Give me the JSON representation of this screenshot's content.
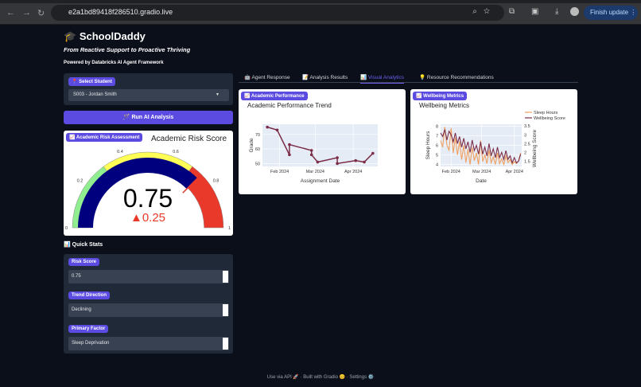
{
  "browser": {
    "url": "e2a1bd89418f286510.gradio.live",
    "finish_update": "Finish update",
    "back": "←",
    "forward": "→",
    "reload": "↻"
  },
  "header": {
    "icon": "🎓",
    "title": "SchoolDaddy",
    "subtitle": "From Reactive Support to Proactive Thriving",
    "powered": "Powered by Databricks AI Agent Framework"
  },
  "student": {
    "label": "📍 Select Student",
    "value": "S003 - Jordan Smith"
  },
  "run_button": "🪄 Run AI Analysis",
  "risk": {
    "label": "📈 Academic Risk Assessment",
    "title": "Academic Risk Score",
    "value": 0.75,
    "value_text": "0.75",
    "delta_text": "▲0.25",
    "reference": 0.5,
    "ticks": [
      "0",
      "0.2",
      "0.4",
      "0.6",
      "0.8",
      "1"
    ],
    "steps": [
      {
        "range": [
          0,
          0.3
        ],
        "color": "#90ee90"
      },
      {
        "range": [
          0.3,
          0.7
        ],
        "color": "#ffff55"
      },
      {
        "range": [
          0.7,
          1
        ],
        "color": "#e8392a"
      }
    ],
    "bar_color": "#00007f",
    "threshold": 0.75,
    "delta_color": "#e8392a"
  },
  "quick_stats": {
    "title": "📊 Quick Stats",
    "items": [
      {
        "label": "Risk Score",
        "value": "0.75"
      },
      {
        "label": "Trend Direction",
        "value": "Declining"
      },
      {
        "label": "Primary Factor",
        "value": "Sleep Deprivation"
      }
    ]
  },
  "tabs": [
    {
      "label": "🤖 Agent Response"
    },
    {
      "label": "📝 Analysis Results"
    },
    {
      "label": "📊 Visual Analytics",
      "active": true
    },
    {
      "label": "💡 Resource Recommendations"
    }
  ],
  "chart_data": [
    {
      "type": "line",
      "label": "📈 Academic Performance",
      "title": "Academic Performance Trend",
      "xlabel": "Assignment Date",
      "ylabel": "Grade",
      "xticks": [
        "Feb 2024",
        "Mar 2024",
        "Apr 2024"
      ],
      "yticks": [
        50,
        60,
        70
      ],
      "ylim": [
        48,
        77
      ],
      "xlim": [
        "2024-01-18",
        "2024-04-21"
      ],
      "color": "#7b2d47",
      "grid": true,
      "x": [
        "2024-01-22",
        "2024-01-30",
        "2024-02-09",
        "2024-02-09",
        "2024-02-27",
        "2024-02-27",
        "2024-03-03",
        "2024-03-19",
        "2024-03-19",
        "2024-04-03",
        "2024-04-10",
        "2024-04-17"
      ],
      "y": [
        75,
        73,
        56,
        63,
        59,
        56,
        51,
        54,
        50,
        52,
        51,
        57
      ]
    },
    {
      "type": "line",
      "label": "📈 Wellbeing Metrics",
      "title": "Wellbeing Metrics",
      "xlabel": "Date",
      "ylabel": "Sleep Hours",
      "y2label": "Wellbeing Score",
      "xticks": [
        "Feb 2024",
        "Mar 2024",
        "Apr 2024"
      ],
      "yticks": [
        4,
        5,
        6,
        7,
        8
      ],
      "y2ticks": [
        1.5,
        2,
        2.5,
        3,
        3.5
      ],
      "ylim": [
        3.8,
        8.2
      ],
      "y2lim": [
        1.2,
        3.6
      ],
      "xlim": [
        "2024-01-22",
        "2024-04-08"
      ],
      "legend": "top-right",
      "grid": true,
      "x": [
        "2024-01-22",
        "2024-01-24",
        "2024-01-26",
        "2024-01-28",
        "2024-01-30",
        "2024-02-01",
        "2024-02-03",
        "2024-02-05",
        "2024-02-07",
        "2024-02-09",
        "2024-02-11",
        "2024-02-13",
        "2024-02-15",
        "2024-02-17",
        "2024-02-19",
        "2024-02-21",
        "2024-02-23",
        "2024-02-25",
        "2024-02-27",
        "2024-02-29",
        "2024-03-02",
        "2024-03-04",
        "2024-03-06",
        "2024-03-08",
        "2024-03-10",
        "2024-03-12",
        "2024-03-14",
        "2024-03-16",
        "2024-03-18",
        "2024-03-20",
        "2024-03-22",
        "2024-03-24",
        "2024-03-26",
        "2024-03-28",
        "2024-03-30",
        "2024-04-01",
        "2024-04-03",
        "2024-04-05",
        "2024-04-07"
      ],
      "series": [
        {
          "name": "Sleep Hours",
          "axis": "y",
          "color": "#f0a060",
          "values": [
            6.5,
            5.8,
            7.9,
            6,
            5.5,
            7.8,
            5.2,
            6.8,
            5,
            6.4,
            4.5,
            6,
            4.2,
            5.6,
            4,
            5.8,
            4.4,
            5.2,
            4,
            6.5,
            4.3,
            5,
            4.1,
            5.5,
            4.2,
            4.8,
            4,
            5.2,
            4.1,
            4.6,
            4,
            4.9,
            4.2,
            4.5,
            4,
            4.3,
            4.1,
            4.4,
            5.2
          ]
        },
        {
          "name": "Wellbeing Score",
          "axis": "y2",
          "color": "#7b2d47",
          "values": [
            3.1,
            2.9,
            3.3,
            2.7,
            3.2,
            3.0,
            2.6,
            3.1,
            2.5,
            2.9,
            2.3,
            2.8,
            2.2,
            2.6,
            2.0,
            2.7,
            2.1,
            2.4,
            1.9,
            2.6,
            1.9,
            2.3,
            1.8,
            2.5,
            1.8,
            2.2,
            1.7,
            2.3,
            1.7,
            2.0,
            1.6,
            2.1,
            1.6,
            1.8,
            1.4,
            1.7,
            1.4,
            1.5,
            1.9
          ]
        }
      ]
    }
  ],
  "footer": {
    "api": "Use via API 🚀",
    "sep": "·",
    "built": "Built with Gradio 😊",
    "settings": "Settings ⚙️"
  }
}
